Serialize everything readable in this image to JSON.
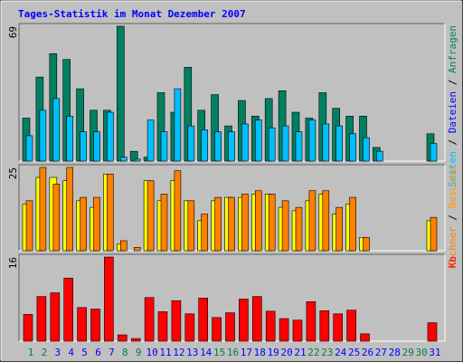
{
  "title": "Tages-Statistik im Monat Dezember 2007",
  "legend_separator": " / ",
  "chart_data": [
    {
      "type": "bar",
      "ylim": [
        0,
        69
      ],
      "yticks": [
        69
      ],
      "series": [
        {
          "name": "Anfragen",
          "color": "#008060",
          "values": [
            22,
            43,
            55,
            52,
            37,
            26,
            26,
            69,
            5,
            2,
            35,
            25,
            48,
            26,
            34,
            18,
            31,
            23,
            32,
            36,
            25,
            22,
            35,
            27,
            23,
            23,
            7,
            0,
            0,
            0,
            14
          ]
        },
        {
          "name": "Seiten",
          "color": "#00BFFF",
          "values": [
            13,
            26,
            32,
            23,
            15,
            15,
            25,
            2,
            1,
            21,
            15,
            37,
            18,
            16,
            15,
            15,
            19,
            21,
            17,
            18,
            15,
            21,
            19,
            18,
            14,
            12,
            5,
            0,
            0,
            0,
            9
          ]
        }
      ],
      "legend_extra": {
        "label": "Dateien",
        "color": "#0000FF"
      }
    },
    {
      "type": "bar",
      "ylim": [
        0,
        25
      ],
      "yticks": [
        25
      ],
      "series": [
        {
          "name": "Besuche",
          "color": "#FFFF00",
          "text_color": "#FF9900",
          "values": [
            14,
            22,
            22,
            21,
            15,
            13,
            23,
            2,
            0,
            21,
            15,
            21,
            15,
            9,
            15,
            16,
            16,
            17,
            17,
            13,
            12,
            15,
            17,
            11,
            14,
            4,
            0,
            0,
            0,
            0,
            9
          ]
        },
        {
          "name": "Rechner",
          "color": "#FF8000",
          "values": [
            15,
            25,
            20,
            25,
            16,
            16,
            23,
            3,
            1,
            21,
            17,
            24,
            15,
            11,
            16,
            16,
            17,
            18,
            17,
            15,
            13,
            18,
            18,
            13,
            16,
            4,
            0,
            0,
            0,
            0,
            10
          ]
        }
      ]
    },
    {
      "type": "bar",
      "ylim": [
        0,
        16
      ],
      "yticks": [
        16
      ],
      "categories": [
        "1",
        "2",
        "3",
        "4",
        "5",
        "6",
        "7",
        "8",
        "9",
        "10",
        "11",
        "12",
        "13",
        "14",
        "15",
        "16",
        "17",
        "18",
        "19",
        "20",
        "21",
        "22",
        "23",
        "24",
        "25",
        "26",
        "27",
        "28",
        "29",
        "30",
        "31"
      ],
      "weekend_indices": [
        0,
        1,
        7,
        8,
        14,
        15,
        21,
        22,
        28,
        29
      ],
      "weekend_color": "#008040",
      "series": [
        {
          "name": "Kb",
          "color": "#FF0000",
          "values": [
            5.1,
            8.5,
            9.2,
            12,
            6.4,
            6.1,
            16,
            1.2,
            0.5,
            8.3,
            5.6,
            7.7,
            5.2,
            8.2,
            4.5,
            5.4,
            8,
            8.5,
            5.7,
            4.3,
            4,
            7.5,
            5.8,
            5.2,
            5.9,
            1.4,
            0,
            0,
            0,
            0,
            3.5
          ]
        }
      ]
    }
  ]
}
